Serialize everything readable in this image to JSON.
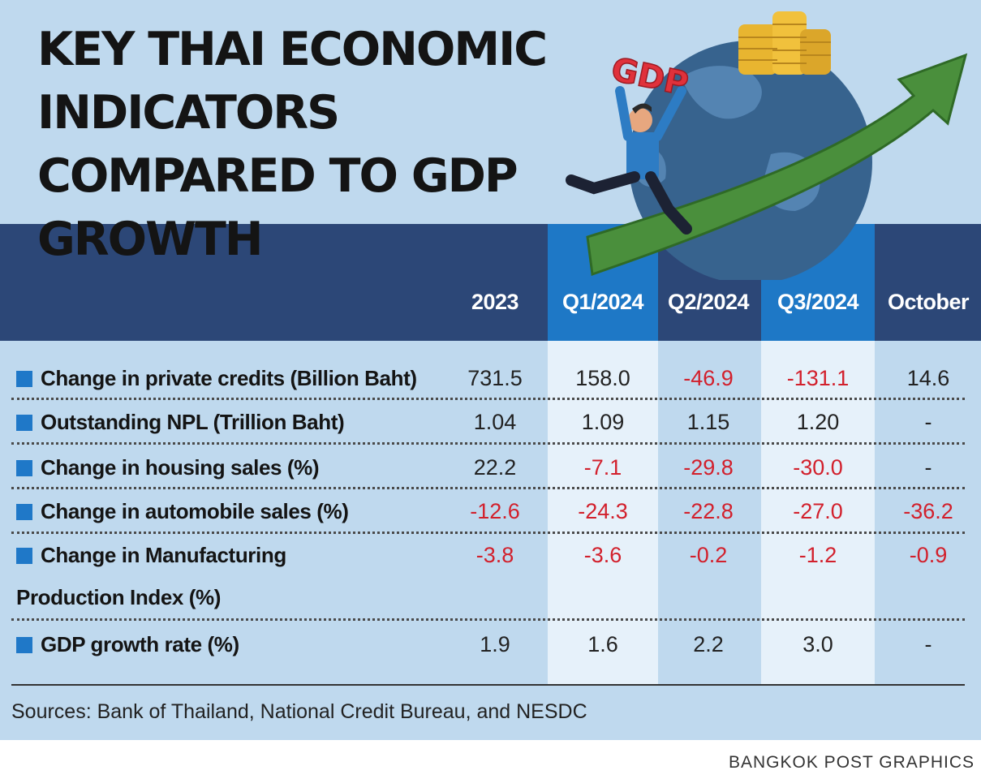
{
  "title": "KEY THAI ECONOMIC INDICATORS COMPARED TO GDP GROWTH",
  "illustration": {
    "badge_text": "GDP"
  },
  "colors": {
    "background": "#bfd9ee",
    "header_band": "#2c4777",
    "highlight_header": "#1e78c6",
    "highlight_body": "#e6f1fa",
    "bullet": "#1f78c8",
    "negative": "#d2202c",
    "arrow": "#4a8f3c"
  },
  "columns": [
    "2023",
    "Q1/2024",
    "Q2/2024",
    "Q3/2024",
    "October"
  ],
  "rows": [
    {
      "label_lines": [
        "Change in private credits (Billion Baht)"
      ],
      "values": [
        "731.5",
        "158.0",
        "-46.9",
        "-131.1",
        "14.6"
      ]
    },
    {
      "label_lines": [
        "Outstanding NPL (Trillion Baht)"
      ],
      "values": [
        "1.04",
        "1.09",
        "1.15",
        "1.20",
        "-"
      ]
    },
    {
      "label_lines": [
        "Change in housing sales (%)"
      ],
      "values": [
        "22.2",
        "-7.1",
        "-29.8",
        "-30.0",
        "-"
      ]
    },
    {
      "label_lines": [
        "Change in automobile sales (%)"
      ],
      "values": [
        "-12.6",
        "-24.3",
        "-22.8",
        "-27.0",
        "-36.2"
      ]
    },
    {
      "label_lines": [
        "Change in Manufacturing",
        "Production Index (%)"
      ],
      "values": [
        "-3.8",
        "-3.6",
        "-0.2",
        "-1.2",
        "-0.9"
      ]
    },
    {
      "label_lines": [
        "GDP growth rate (%)"
      ],
      "values": [
        "1.9",
        "1.6",
        "2.2",
        "3.0",
        "-"
      ]
    }
  ],
  "chart_data": {
    "type": "table",
    "title": "KEY THAI ECONOMIC INDICATORS COMPARED TO GDP GROWTH",
    "columns": [
      "2023",
      "Q1/2024",
      "Q2/2024",
      "Q3/2024",
      "October"
    ],
    "rows": [
      {
        "name": "Change in private credits (Billion Baht)",
        "values": [
          731.5,
          158.0,
          -46.9,
          -131.1,
          14.6
        ]
      },
      {
        "name": "Outstanding NPL (Trillion Baht)",
        "values": [
          1.04,
          1.09,
          1.15,
          1.2,
          null
        ]
      },
      {
        "name": "Change in housing sales (%)",
        "values": [
          22.2,
          -7.1,
          -29.8,
          -30.0,
          null
        ]
      },
      {
        "name": "Change in automobile sales (%)",
        "values": [
          -12.6,
          -24.3,
          -22.8,
          -27.0,
          -36.2
        ]
      },
      {
        "name": "Change in Manufacturing Production Index (%)",
        "values": [
          -3.8,
          -3.6,
          -0.2,
          -1.2,
          -0.9
        ]
      },
      {
        "name": "GDP growth rate (%)",
        "values": [
          1.9,
          1.6,
          2.2,
          3.0,
          null
        ]
      }
    ],
    "negative_values_color": "#d2202c"
  },
  "sources": "Sources: Bank of Thailand, National Credit Bureau, and NESDC",
  "credit": "BANGKOK POST GRAPHICS"
}
